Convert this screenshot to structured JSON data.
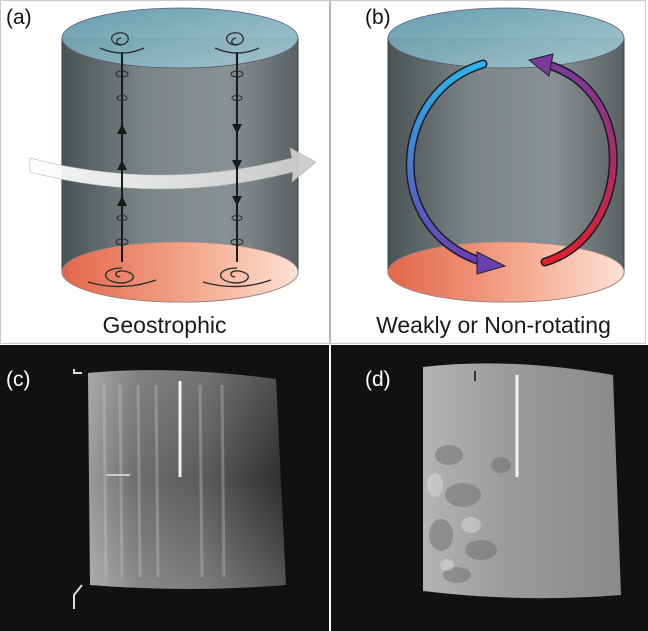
{
  "panels": {
    "a": {
      "label": "(a)",
      "caption": "Geostrophic"
    },
    "b": {
      "label": "(b)",
      "caption": "Weakly or Non-rotating"
    },
    "c": {
      "label": "(c)"
    },
    "d": {
      "label": "(d)"
    }
  },
  "colors": {
    "cylinder_body": "#6e7577",
    "top_lid": "#6fa3b0",
    "bottom_heated": "#f08a6a",
    "rotation_arrow": "#dcdcdc",
    "flow_cold": "#29a9e0",
    "flow_warm": "#d8202c",
    "photo_background": "#0f0f0f"
  }
}
